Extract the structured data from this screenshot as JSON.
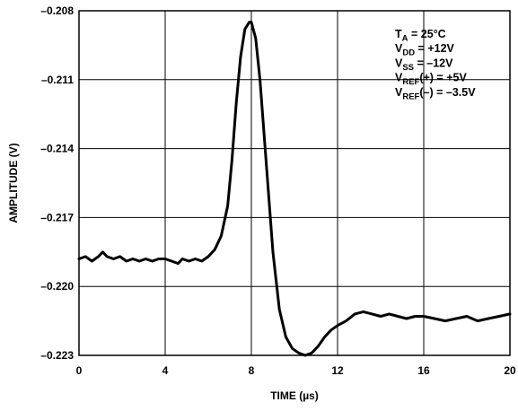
{
  "chart_data": {
    "type": "line",
    "title": "",
    "xlabel": "TIME (µs)",
    "ylabel": "AMPLITUDE (V)",
    "xlim": [
      0,
      20
    ],
    "ylim": [
      -0.223,
      -0.208
    ],
    "grid": true,
    "x_ticks": [
      0,
      4,
      8,
      12,
      16,
      20
    ],
    "x_tick_labels": [
      "0",
      "4",
      "8",
      "12",
      "16",
      "20"
    ],
    "y_ticks": [
      -0.208,
      -0.211,
      -0.214,
      -0.217,
      -0.22,
      -0.223
    ],
    "y_tick_labels": [
      "–0.208",
      "–0.211",
      "–0.214",
      "–0.217",
      "–0.220",
      "–0.223"
    ],
    "annotation": {
      "placement": "top-right",
      "lines": [
        {
          "main": "T",
          "sub": "A",
          "rest": " = 25°C"
        },
        {
          "main": "V",
          "sub": "DD",
          "rest": " = +12V"
        },
        {
          "main": "V",
          "sub": "SS",
          "rest": " = –12V"
        },
        {
          "main": "V",
          "sub": "REF",
          "rest": "(+) = +5V"
        },
        {
          "main": "V",
          "sub": "REF",
          "rest": "(–) = –3.5V"
        }
      ]
    },
    "series": [
      {
        "x": [
          0,
          0.3,
          0.6,
          0.9,
          1.1,
          1.3,
          1.6,
          1.9,
          2.2,
          2.5,
          2.8,
          3.1,
          3.4,
          3.7,
          4.0,
          4.3,
          4.6,
          4.8,
          5.1,
          5.4,
          5.7,
          6.0,
          6.3,
          6.6,
          6.9,
          7.1,
          7.3,
          7.5,
          7.7,
          7.9,
          8.0,
          8.2,
          8.4,
          8.6,
          8.8,
          9.0,
          9.3,
          9.6,
          9.9,
          10.2,
          10.5,
          10.8,
          11.1,
          11.4,
          11.7,
          12.0,
          12.4,
          12.8,
          13.2,
          13.6,
          14.0,
          14.4,
          14.8,
          15.2,
          15.6,
          16.0,
          16.5,
          17.0,
          17.5,
          18.0,
          18.5,
          19.0,
          19.5,
          20.0
        ],
        "y": [
          -0.2188,
          -0.2187,
          -0.2189,
          -0.2187,
          -0.2185,
          -0.2187,
          -0.2188,
          -0.2187,
          -0.2189,
          -0.2188,
          -0.2189,
          -0.2188,
          -0.2189,
          -0.2188,
          -0.2188,
          -0.2189,
          -0.219,
          -0.2188,
          -0.2189,
          -0.2188,
          -0.2189,
          -0.2187,
          -0.2184,
          -0.2178,
          -0.2165,
          -0.2145,
          -0.212,
          -0.21,
          -0.2088,
          -0.2085,
          -0.2085,
          -0.2092,
          -0.211,
          -0.2135,
          -0.216,
          -0.2185,
          -0.221,
          -0.2222,
          -0.2227,
          -0.2229,
          -0.223,
          -0.2229,
          -0.2226,
          -0.2222,
          -0.2219,
          -0.2217,
          -0.2215,
          -0.2212,
          -0.2211,
          -0.2212,
          -0.2213,
          -0.2212,
          -0.2213,
          -0.2214,
          -0.2213,
          -0.2213,
          -0.2214,
          -0.2215,
          -0.2214,
          -0.2213,
          -0.2215,
          -0.2214,
          -0.2213,
          -0.2212
        ]
      }
    ]
  }
}
